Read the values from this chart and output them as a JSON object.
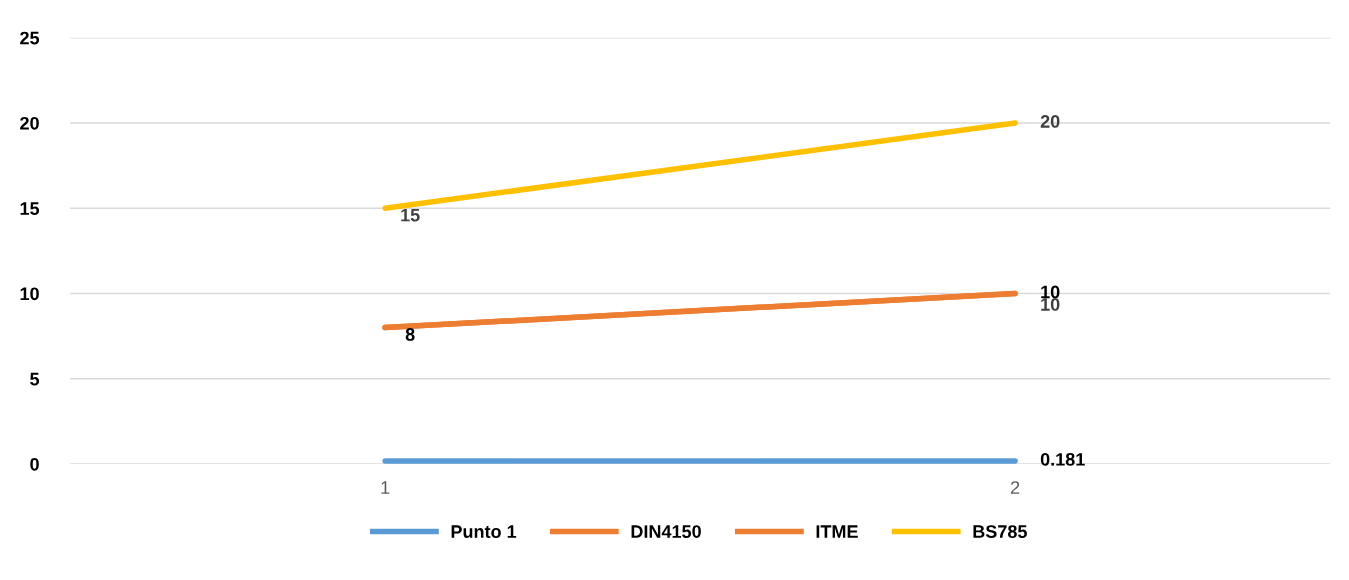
{
  "chart_data": {
    "type": "line",
    "categories": [
      "1",
      "2"
    ],
    "series": [
      {
        "name": "Punto 1",
        "color": "#5b9bd5",
        "values": [
          0.181,
          0.181
        ],
        "value_labels": [
          null,
          "0.181"
        ]
      },
      {
        "name": "DIN4150",
        "color": "#ed7d31",
        "values": [
          8,
          10
        ],
        "value_labels": [
          "8",
          "10"
        ]
      },
      {
        "name": "ITME",
        "color": "#ed7d31",
        "values": [
          8,
          10
        ],
        "value_labels": [
          null,
          "10"
        ]
      },
      {
        "name": "BS785",
        "color": "#ffc000",
        "values": [
          15,
          20
        ],
        "value_labels": [
          "15",
          "20"
        ]
      }
    ],
    "ylim": [
      0,
      25
    ],
    "yticks": [
      0,
      5,
      10,
      15,
      20,
      25
    ],
    "grid": "y",
    "legend": "bottom",
    "marker": "none",
    "line_style": "solid"
  }
}
